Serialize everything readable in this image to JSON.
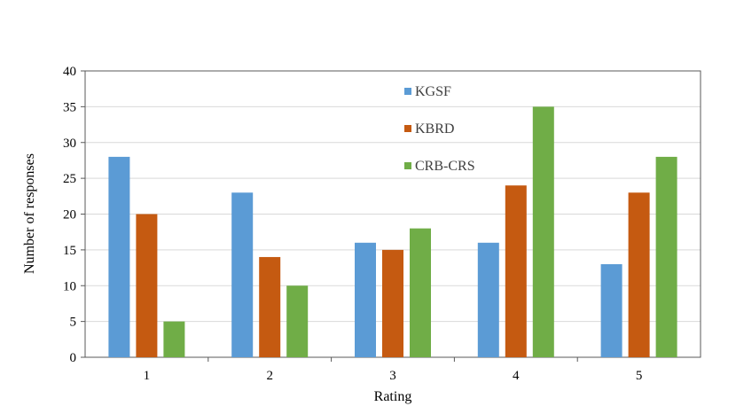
{
  "chart_data": {
    "type": "bar",
    "title": "",
    "xlabel": "Rating",
    "ylabel": "Number of responses",
    "categories": [
      "1",
      "2",
      "3",
      "4",
      "5"
    ],
    "ylim": [
      0,
      40
    ],
    "yticks": [
      "0",
      "5",
      "10",
      "15",
      "20",
      "25",
      "30",
      "35",
      "40"
    ],
    "grid": true,
    "legend_position": "top-center",
    "series": [
      {
        "name": "KGSF",
        "color": "#5B9BD5",
        "values": [
          28,
          23,
          16,
          16,
          13
        ]
      },
      {
        "name": "KBRD",
        "color": "#C55A11",
        "values": [
          20,
          14,
          15,
          24,
          23
        ]
      },
      {
        "name": "CRB-CRS",
        "color": "#70AD47",
        "values": [
          5,
          10,
          18,
          35,
          28
        ]
      }
    ]
  }
}
